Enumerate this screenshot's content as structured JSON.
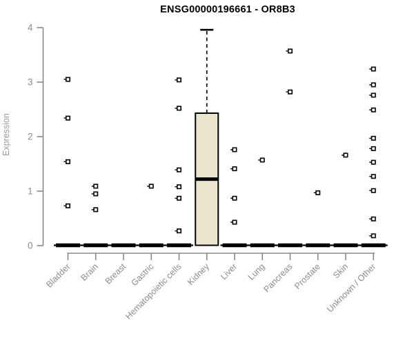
{
  "header": {
    "title": "ENSG00000196661 - OR8B3"
  },
  "chart_data": {
    "type": "box",
    "title": "ENSG00000196661 - OR8B3",
    "xlabel": "",
    "ylabel": "Expression",
    "ylim": [
      0,
      4
    ],
    "yticks": [
      0,
      1,
      2,
      3,
      4
    ],
    "grid": false,
    "legend": "none",
    "categories": [
      "Bladder",
      "Brain",
      "Breast",
      "Gastric",
      "Hematopoietic cells",
      "Kidney",
      "Liver",
      "Lung",
      "Pancreas",
      "Prostate",
      "Skin",
      "Unknown / Other"
    ],
    "boxes": [
      {
        "category": "Bladder",
        "q1": 0,
        "median": 0,
        "q3": 0,
        "whisker_low": 0,
        "whisker_high": 0,
        "outliers": [
          3.05,
          2.34,
          1.54,
          0.73
        ]
      },
      {
        "category": "Brain",
        "q1": 0,
        "median": 0,
        "q3": 0,
        "whisker_low": 0,
        "whisker_high": 0,
        "outliers": [
          1.09,
          0.95,
          0.66
        ]
      },
      {
        "category": "Breast",
        "q1": 0,
        "median": 0,
        "q3": 0,
        "whisker_low": 0,
        "whisker_high": 0,
        "outliers": []
      },
      {
        "category": "Gastric",
        "q1": 0,
        "median": 0,
        "q3": 0,
        "whisker_low": 0,
        "whisker_high": 0,
        "outliers": [
          1.09
        ]
      },
      {
        "category": "Hematopoietic cells",
        "q1": 0,
        "median": 0,
        "q3": 0,
        "whisker_low": 0,
        "whisker_high": 0,
        "outliers": [
          3.04,
          2.52,
          1.39,
          1.08,
          0.87,
          0.27
        ]
      },
      {
        "category": "Kidney",
        "q1": 0,
        "median": 1.22,
        "q3": 2.43,
        "whisker_low": 0,
        "whisker_high": 3.96,
        "outliers": []
      },
      {
        "category": "Liver",
        "q1": 0,
        "median": 0,
        "q3": 0,
        "whisker_low": 0,
        "whisker_high": 0,
        "outliers": [
          1.76,
          1.41,
          0.87,
          0.43
        ]
      },
      {
        "category": "Lung",
        "q1": 0,
        "median": 0,
        "q3": 0,
        "whisker_low": 0,
        "whisker_high": 0,
        "outliers": [
          1.57
        ]
      },
      {
        "category": "Pancreas",
        "q1": 0,
        "median": 0,
        "q3": 0,
        "whisker_low": 0,
        "whisker_high": 0,
        "outliers": [
          3.57,
          2.82
        ]
      },
      {
        "category": "Prostate",
        "q1": 0,
        "median": 0,
        "q3": 0,
        "whisker_low": 0,
        "whisker_high": 0,
        "outliers": [
          0.97
        ]
      },
      {
        "category": "Skin",
        "q1": 0,
        "median": 0,
        "q3": 0,
        "whisker_low": 0,
        "whisker_high": 0,
        "outliers": [
          1.66
        ]
      },
      {
        "category": "Unknown / Other",
        "q1": 0,
        "median": 0,
        "q3": 0,
        "whisker_low": 0,
        "whisker_high": 0,
        "outliers": [
          3.24,
          2.95,
          2.76,
          2.49,
          1.97,
          1.78,
          1.53,
          1.27,
          1.01,
          0.49,
          0.18
        ]
      }
    ],
    "colors": {
      "box_fill": "#eae5cb",
      "box_stroke": "#000000",
      "median": "#000000",
      "outlier_stroke": "#000000",
      "outlier_fill": "#ffffff",
      "axis": "#898989",
      "tick_label": "#8c8c8c",
      "title": "#000000"
    }
  }
}
